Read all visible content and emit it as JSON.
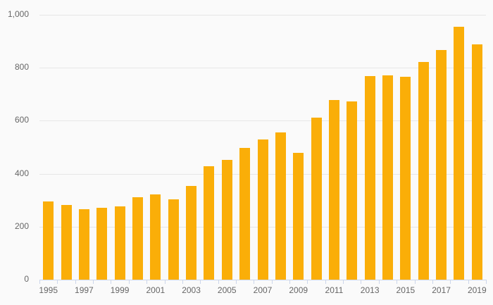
{
  "chart_data": {
    "type": "bar",
    "title": "",
    "xlabel": "",
    "ylabel": "",
    "categories": [
      "1995",
      "1996",
      "1997",
      "1998",
      "1999",
      "2000",
      "2001",
      "2002",
      "2003",
      "2004",
      "2005",
      "2006",
      "2007",
      "2008",
      "2009",
      "2010",
      "2011",
      "2012",
      "2013",
      "2014",
      "2015",
      "2016",
      "2017",
      "2018",
      "2019"
    ],
    "values": [
      295,
      283,
      266,
      270,
      276,
      311,
      321,
      303,
      353,
      427,
      451,
      497,
      529,
      556,
      479,
      613,
      677,
      672,
      768,
      771,
      766,
      822,
      868,
      954,
      887
    ],
    "ylim": [
      0,
      1000
    ],
    "ytick_interval": 200,
    "ytick_labels": [
      "0",
      "200",
      "400",
      "600",
      "800",
      "1,000"
    ],
    "xtick_labels_visible": [
      "1995",
      "1997",
      "1999",
      "2001",
      "2003",
      "2005",
      "2007",
      "2009",
      "2011",
      "2013",
      "2015",
      "2017",
      "2019"
    ],
    "xtick_label_step": 2,
    "grid": true,
    "legend": false,
    "colors": {
      "bar": "#FAAE08",
      "grid": "#e6e6e6",
      "axis_line": "#ccd6eb",
      "tick": "#ccd6eb",
      "label": "#666666",
      "background": "#fafafa"
    }
  }
}
